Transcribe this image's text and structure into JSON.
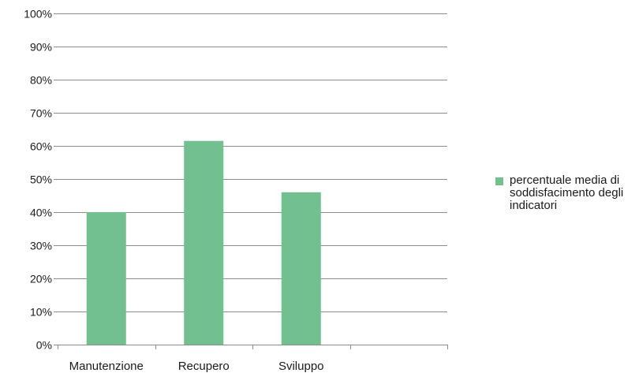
{
  "chart_data": {
    "type": "bar",
    "categories": [
      "Manutenzione",
      "Recupero",
      "Sviluppo",
      ""
    ],
    "series": [
      {
        "name": "percentuale media di soddisfacimento degli indicatori",
        "values": [
          40,
          61.5,
          46,
          null
        ]
      }
    ],
    "title": "",
    "xlabel": "",
    "ylabel": "",
    "ylim": [
      0,
      100
    ],
    "yticks": [
      "0%",
      "10%",
      "20%",
      "30%",
      "40%",
      "50%",
      "60%",
      "70%",
      "80%",
      "90%",
      "100%"
    ],
    "grid": true,
    "legend_position": "right",
    "bar_color": "#72bf8f",
    "grid_color": "#8c8c8c"
  }
}
